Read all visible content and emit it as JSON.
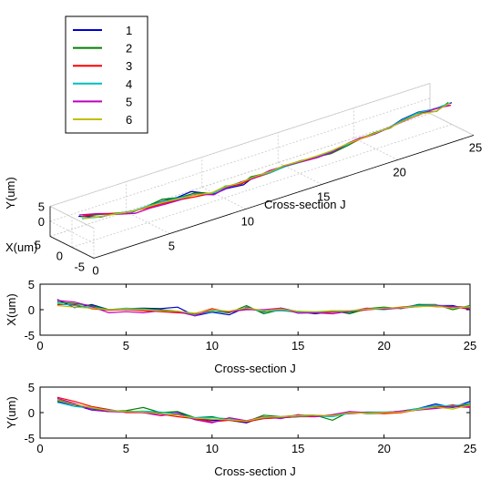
{
  "legend": {
    "entries": [
      {
        "label": "1",
        "color": "#0000cc"
      },
      {
        "label": "2",
        "color": "#008000"
      },
      {
        "label": "3",
        "color": "#ff0000"
      },
      {
        "label": "4",
        "color": "#00bfbf"
      },
      {
        "label": "5",
        "color": "#bf00bf"
      },
      {
        "label": "6",
        "color": "#bfbf00"
      }
    ]
  },
  "chart_data": [
    {
      "type": "line",
      "projection": "3d",
      "xlabel": "Cross-section J",
      "ylabel": "X(um)",
      "zlabel": "Y(um)",
      "xlim": [
        0,
        25
      ],
      "ylim": [
        -5,
        5
      ],
      "zlim": [
        -5,
        5
      ],
      "xticks": [
        0,
        5,
        10,
        15,
        20,
        25
      ],
      "yticks": [
        -5,
        0,
        5
      ],
      "zticks": [
        0,
        5
      ],
      "grid": true,
      "legend_position": "top-left",
      "x": [
        1,
        2,
        3,
        4,
        5,
        6,
        7,
        8,
        9,
        10,
        11,
        12,
        13,
        14,
        15,
        16,
        17,
        18,
        19,
        20,
        21,
        22,
        23,
        24,
        25
      ],
      "series": [
        {
          "name": "1",
          "color": "#0000cc",
          "xvals": [
            2.0,
            0.4,
            1.0,
            0.0,
            0.2,
            0.3,
            0.2,
            0.5,
            -1.2,
            -0.5,
            -1.0,
            0.5,
            -0.5,
            0.3,
            -0.4,
            -0.8,
            -0.4,
            -0.5,
            0.0,
            0.3,
            0.3,
            1.0,
            0.8,
            0.8,
            0.0
          ],
          "yvals": [
            2.2,
            1.5,
            0.5,
            0.2,
            0.3,
            0.2,
            0.0,
            0.1,
            -1.2,
            -1.5,
            -1.5,
            -2.0,
            -0.8,
            -1.0,
            -0.8,
            -0.6,
            -0.5,
            0.0,
            0.0,
            0.0,
            0.3,
            0.8,
            1.7,
            1.0,
            2.2
          ]
        },
        {
          "name": "2",
          "color": "#008000",
          "xvals": [
            1.5,
            1.2,
            0.8,
            0.0,
            0.1,
            0.2,
            0.0,
            -0.3,
            -1.0,
            -0.3,
            -0.6,
            0.8,
            -0.8,
            0.0,
            -0.3,
            -0.7,
            -0.2,
            -0.8,
            0.2,
            0.5,
            0.2,
            1.0,
            1.0,
            0.0,
            0.8
          ],
          "yvals": [
            2.5,
            1.7,
            0.8,
            0.3,
            0.4,
            1.0,
            0.0,
            0.2,
            -1.0,
            -0.8,
            -1.5,
            -1.8,
            -0.5,
            -0.8,
            -0.5,
            -0.5,
            -1.5,
            0.2,
            -0.2,
            -0.1,
            0.2,
            0.5,
            1.2,
            1.0,
            1.7
          ]
        },
        {
          "name": "3",
          "color": "#ff0000",
          "xvals": [
            1.0,
            1.0,
            0.2,
            -0.1,
            0.0,
            -0.2,
            -0.4,
            -0.6,
            -0.8,
            0.2,
            -0.5,
            0.2,
            -0.3,
            0.0,
            -0.4,
            -0.6,
            -0.5,
            -0.3,
            0.0,
            0.2,
            0.5,
            0.8,
            0.6,
            0.5,
            0.2
          ],
          "yvals": [
            3.0,
            2.2,
            1.2,
            0.6,
            0.0,
            0.0,
            -0.3,
            -0.8,
            -1.2,
            -1.8,
            -1.5,
            -1.8,
            -1.2,
            -1.0,
            -0.8,
            -0.8,
            -0.5,
            -0.2,
            0.0,
            -0.2,
            0.0,
            0.6,
            1.0,
            1.5,
            1.2
          ]
        },
        {
          "name": "4",
          "color": "#00bfbf",
          "xvals": [
            1.2,
            0.8,
            0.5,
            0.0,
            0.3,
            0.1,
            -0.2,
            -0.4,
            -1.0,
            -0.4,
            -0.3,
            0.3,
            -0.4,
            -0.2,
            -0.5,
            -0.5,
            -0.3,
            -0.4,
            0.2,
            0.0,
            0.4,
            0.8,
            0.9,
            0.6,
            0.4
          ],
          "yvals": [
            2.0,
            1.2,
            0.9,
            0.5,
            0.2,
            0.3,
            0.1,
            -0.3,
            -1.0,
            -1.0,
            -1.2,
            -1.6,
            -1.0,
            -0.9,
            -0.7,
            -0.7,
            -0.8,
            -0.1,
            0.1,
            0.1,
            0.2,
            0.8,
            1.4,
            1.3,
            1.8
          ]
        },
        {
          "name": "5",
          "color": "#bf00bf",
          "xvals": [
            1.8,
            1.5,
            0.6,
            -0.6,
            -0.4,
            -0.6,
            -0.2,
            -0.4,
            -1.2,
            0.0,
            -0.4,
            0.0,
            0.0,
            0.3,
            -0.7,
            -0.6,
            -0.8,
            -0.3,
            0.3,
            0.1,
            0.3,
            0.6,
            0.8,
            0.6,
            0.5
          ],
          "yvals": [
            2.8,
            1.8,
            0.6,
            0.2,
            0.1,
            0.0,
            -0.6,
            -0.2,
            -1.4,
            -2.0,
            -1.0,
            -1.6,
            -0.8,
            -1.2,
            -0.4,
            -0.8,
            -0.4,
            0.2,
            0.0,
            0.0,
            0.3,
            0.5,
            0.8,
            1.2,
            1.0
          ]
        },
        {
          "name": "6",
          "color": "#bfbf00",
          "xvals": [
            0.8,
            0.5,
            0.3,
            0.0,
            0.1,
            0.0,
            -0.2,
            -0.3,
            -0.7,
            0.0,
            -0.3,
            0.4,
            -0.2,
            0.1,
            -0.3,
            -0.4,
            -0.2,
            -0.2,
            0.1,
            0.3,
            0.4,
            0.6,
            0.7,
            0.3,
            0.6
          ],
          "yvals": [
            2.4,
            1.6,
            1.0,
            0.4,
            0.2,
            0.1,
            -0.2,
            -0.5,
            -1.1,
            -1.3,
            -1.4,
            -1.7,
            -0.9,
            -0.8,
            -0.6,
            -0.5,
            -0.6,
            0.0,
            -0.1,
            0.0,
            0.1,
            0.6,
            1.1,
            0.7,
            1.5
          ]
        }
      ]
    },
    {
      "type": "line",
      "xlabel": "Cross-section J",
      "ylabel": "X(um)",
      "xlim": [
        0,
        25
      ],
      "ylim": [
        -5,
        5
      ],
      "xticks": [
        0,
        5,
        10,
        15,
        20,
        25
      ],
      "yticks": [
        -5,
        0,
        5
      ],
      "grid": false,
      "series_ref": "xvals"
    },
    {
      "type": "line",
      "xlabel": "Cross-section J",
      "ylabel": "Y(um)",
      "xlim": [
        0,
        25
      ],
      "ylim": [
        -5,
        5
      ],
      "xticks": [
        0,
        5,
        10,
        15,
        20,
        25
      ],
      "yticks": [
        -5,
        0,
        5
      ],
      "grid": false,
      "series_ref": "yvals"
    }
  ]
}
